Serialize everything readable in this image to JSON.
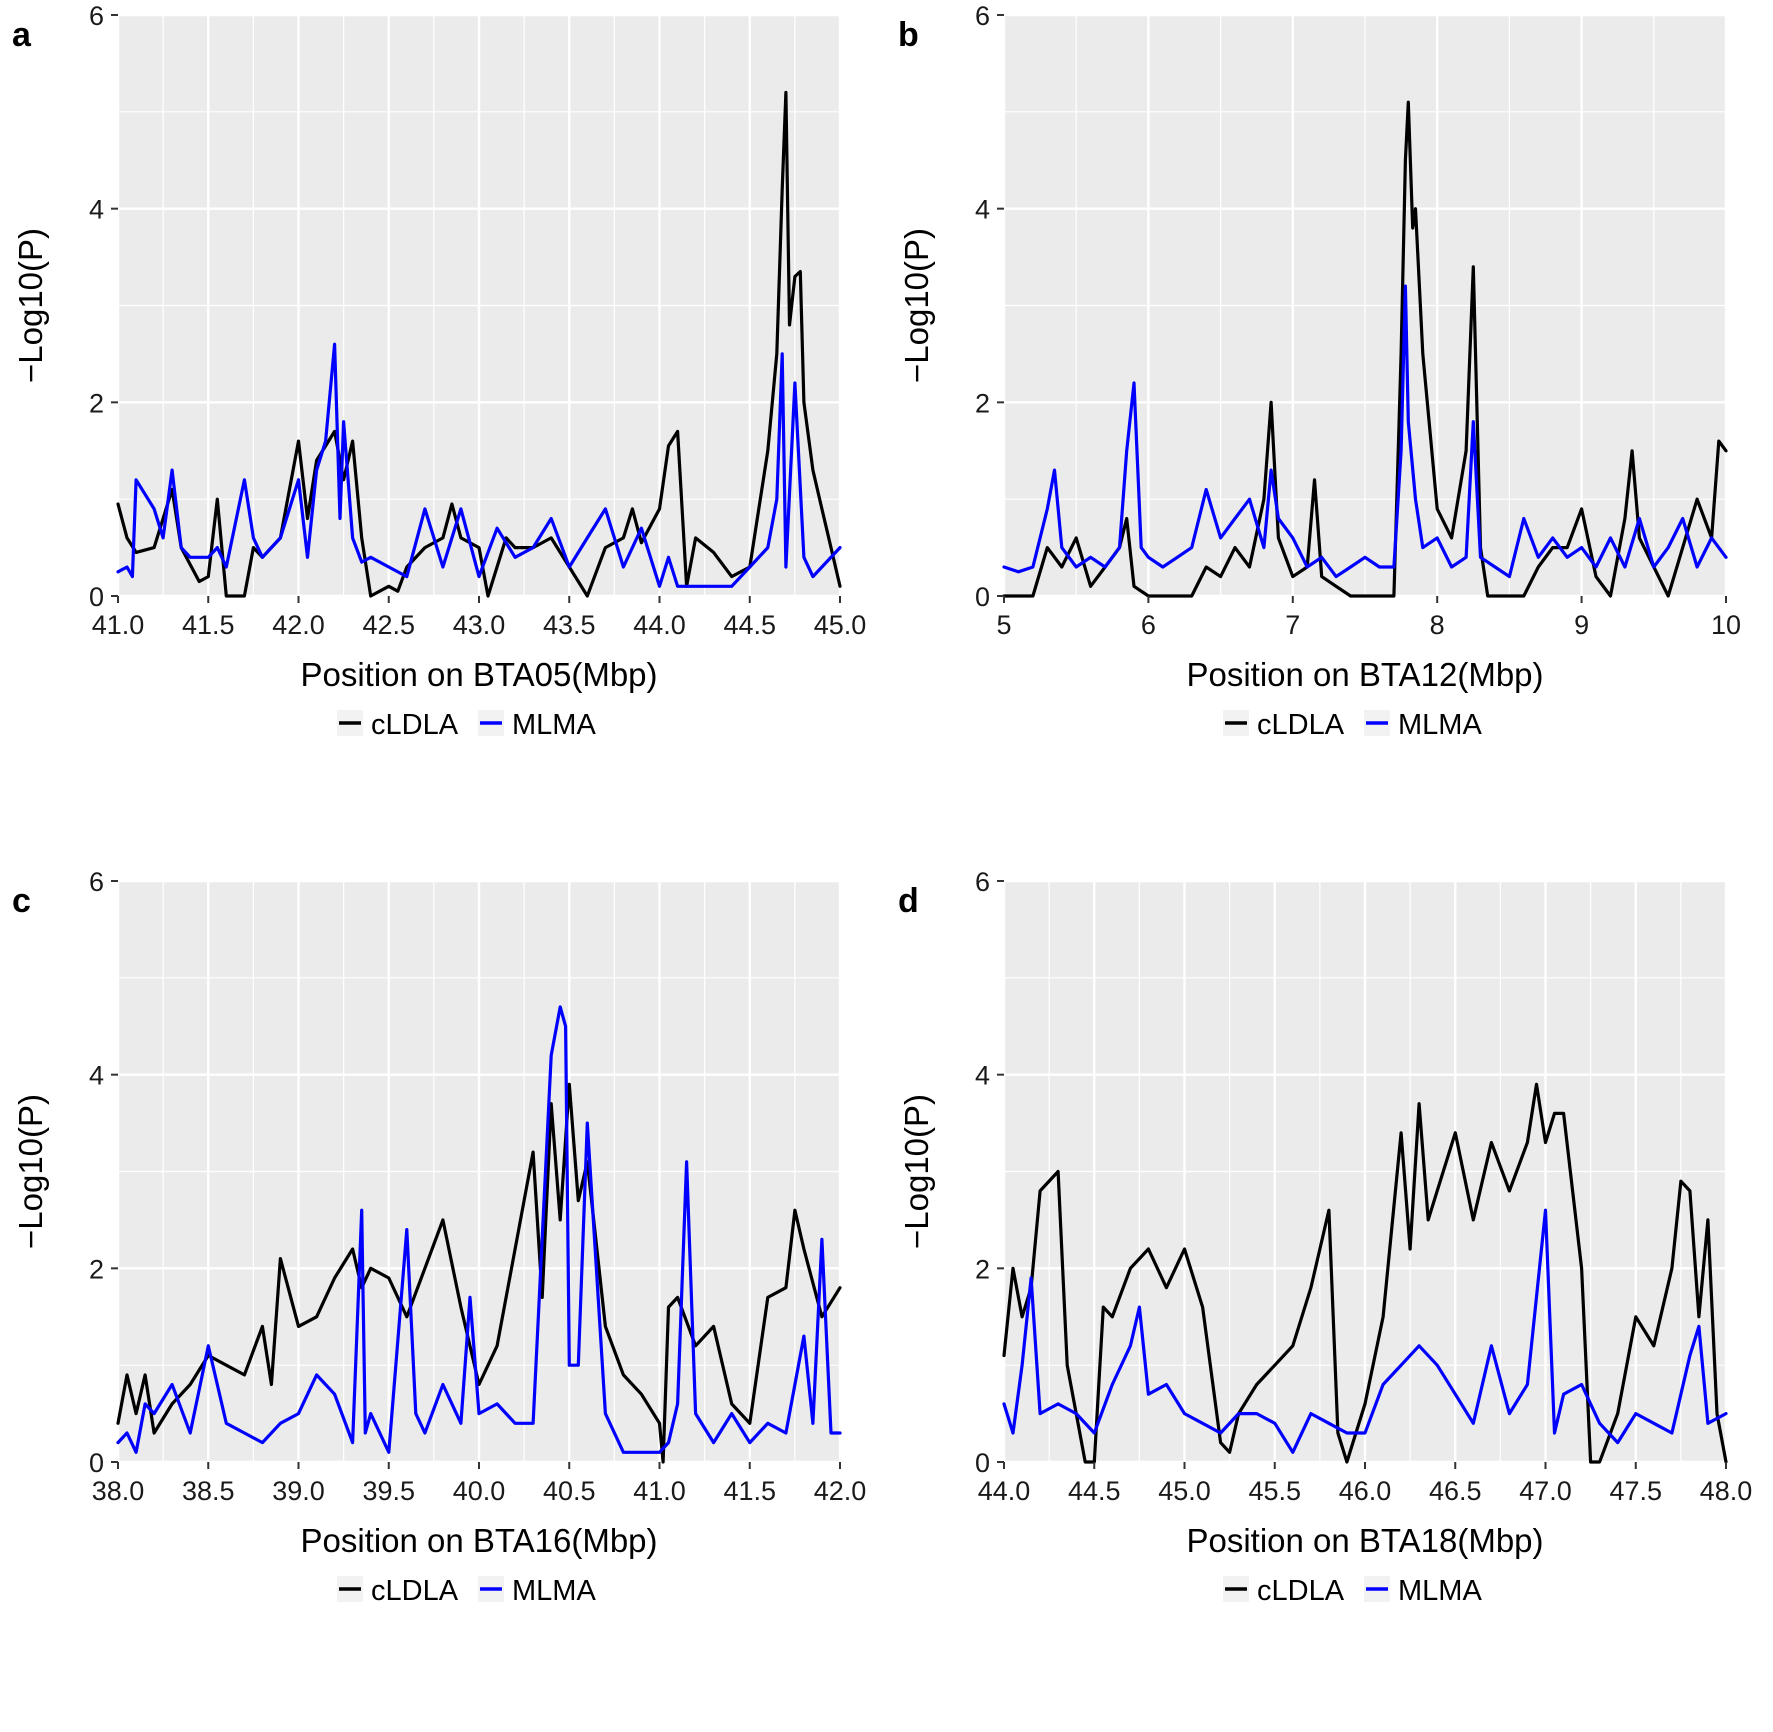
{
  "colors": {
    "panel_background": "#ebebeb",
    "gridline": "#ffffff",
    "cLDLA": "#000000",
    "MLMA": "#0000ff"
  },
  "legend": {
    "placement": "bottom",
    "entries": [
      "cLDLA",
      "MLMA"
    ]
  },
  "chart_data": [
    {
      "type": "line",
      "panel_label": "a",
      "xlabel": "Position on BTA05(Mbp)",
      "ylabel": "−Log10(P)",
      "xlim": [
        41.0,
        45.0
      ],
      "ylim": [
        0,
        6
      ],
      "x_ticks": [
        "41.0",
        "41.5",
        "42.0",
        "42.5",
        "43.0",
        "43.5",
        "44.0",
        "44.5",
        "45.0"
      ],
      "y_ticks": [
        "0",
        "2",
        "4",
        "6"
      ],
      "grid": true,
      "series": [
        {
          "name": "cLDLA",
          "x": [
            41.0,
            41.05,
            41.1,
            41.2,
            41.3,
            41.35,
            41.45,
            41.5,
            41.55,
            41.6,
            41.7,
            41.75,
            41.8,
            41.9,
            42.0,
            42.05,
            42.1,
            42.2,
            42.25,
            42.3,
            42.35,
            42.4,
            42.5,
            42.55,
            42.6,
            42.7,
            42.8,
            42.85,
            42.9,
            43.0,
            43.05,
            43.15,
            43.2,
            43.3,
            43.4,
            43.5,
            43.6,
            43.7,
            43.8,
            43.85,
            43.9,
            44.0,
            44.05,
            44.1,
            44.15,
            44.2,
            44.3,
            44.4,
            44.5,
            44.55,
            44.6,
            44.65,
            44.68,
            44.7,
            44.72,
            44.75,
            44.78,
            44.8,
            44.85,
            44.9,
            44.95,
            45.0
          ],
          "values": [
            0.95,
            0.6,
            0.45,
            0.5,
            1.1,
            0.5,
            0.15,
            0.2,
            1.0,
            0.0,
            0.0,
            0.5,
            0.4,
            0.6,
            1.6,
            0.8,
            1.4,
            1.7,
            1.2,
            1.6,
            0.6,
            0.0,
            0.1,
            0.05,
            0.3,
            0.5,
            0.6,
            0.95,
            0.6,
            0.5,
            0.0,
            0.6,
            0.5,
            0.5,
            0.6,
            0.3,
            0.0,
            0.5,
            0.6,
            0.9,
            0.55,
            0.9,
            1.55,
            1.7,
            0.1,
            0.6,
            0.45,
            0.2,
            0.3,
            0.9,
            1.5,
            2.5,
            4.2,
            5.2,
            2.8,
            3.3,
            3.35,
            2.0,
            1.3,
            0.9,
            0.5,
            0.1
          ]
        },
        {
          "name": "MLMA",
          "x": [
            41.0,
            41.05,
            41.08,
            41.1,
            41.2,
            41.25,
            41.3,
            41.35,
            41.4,
            41.5,
            41.55,
            41.6,
            41.7,
            41.75,
            41.8,
            41.9,
            42.0,
            42.05,
            42.1,
            42.15,
            42.2,
            42.23,
            42.25,
            42.3,
            42.35,
            42.4,
            42.5,
            42.6,
            42.7,
            42.8,
            42.9,
            43.0,
            43.1,
            43.2,
            43.3,
            43.4,
            43.5,
            43.6,
            43.7,
            43.8,
            43.9,
            44.0,
            44.05,
            44.1,
            44.2,
            44.3,
            44.4,
            44.5,
            44.6,
            44.65,
            44.68,
            44.7,
            44.75,
            44.8,
            44.85,
            44.9,
            45.0
          ],
          "values": [
            0.25,
            0.3,
            0.2,
            1.2,
            0.9,
            0.6,
            1.3,
            0.5,
            0.4,
            0.4,
            0.5,
            0.3,
            1.2,
            0.6,
            0.4,
            0.6,
            1.2,
            0.4,
            1.3,
            1.6,
            2.6,
            0.8,
            1.8,
            0.6,
            0.35,
            0.4,
            0.3,
            0.2,
            0.9,
            0.3,
            0.9,
            0.2,
            0.7,
            0.4,
            0.5,
            0.8,
            0.3,
            0.6,
            0.9,
            0.3,
            0.7,
            0.1,
            0.4,
            0.1,
            0.1,
            0.1,
            0.1,
            0.3,
            0.5,
            1.0,
            2.5,
            0.3,
            2.2,
            0.4,
            0.2,
            0.3,
            0.5
          ]
        }
      ]
    },
    {
      "type": "line",
      "panel_label": "b",
      "xlabel": "Position on BTA12(Mbp)",
      "ylabel": "−Log10(P)",
      "xlim": [
        5,
        10
      ],
      "ylim": [
        0,
        6
      ],
      "x_ticks": [
        "5",
        "6",
        "7",
        "8",
        "9",
        "10"
      ],
      "y_ticks": [
        "0",
        "2",
        "4",
        "6"
      ],
      "grid": true,
      "series": [
        {
          "name": "cLDLA",
          "x": [
            5.0,
            5.2,
            5.3,
            5.4,
            5.5,
            5.6,
            5.7,
            5.8,
            5.85,
            5.9,
            6.0,
            6.1,
            6.3,
            6.4,
            6.5,
            6.6,
            6.7,
            6.8,
            6.85,
            6.9,
            7.0,
            7.1,
            7.15,
            7.2,
            7.3,
            7.4,
            7.5,
            7.7,
            7.75,
            7.78,
            7.8,
            7.83,
            7.85,
            7.9,
            8.0,
            8.1,
            8.2,
            8.25,
            8.3,
            8.35,
            8.5,
            8.6,
            8.7,
            8.8,
            8.9,
            9.0,
            9.1,
            9.2,
            9.3,
            9.35,
            9.4,
            9.5,
            9.6,
            9.7,
            9.8,
            9.9,
            9.95,
            10.0
          ],
          "values": [
            0.0,
            0.0,
            0.5,
            0.3,
            0.6,
            0.1,
            0.3,
            0.5,
            0.8,
            0.1,
            0.0,
            0.0,
            0.0,
            0.3,
            0.2,
            0.5,
            0.3,
            1.0,
            2.0,
            0.6,
            0.2,
            0.3,
            1.2,
            0.2,
            0.1,
            0.0,
            0.0,
            0.0,
            2.5,
            4.5,
            5.1,
            3.8,
            4.0,
            2.5,
            0.9,
            0.6,
            1.5,
            3.4,
            0.5,
            0.0,
            0.0,
            0.0,
            0.3,
            0.5,
            0.5,
            0.9,
            0.2,
            0.0,
            0.8,
            1.5,
            0.6,
            0.3,
            0.0,
            0.5,
            1.0,
            0.6,
            1.6,
            1.5
          ]
        },
        {
          "name": "MLMA",
          "x": [
            5.0,
            5.1,
            5.2,
            5.3,
            5.35,
            5.4,
            5.5,
            5.6,
            5.7,
            5.8,
            5.85,
            5.9,
            5.95,
            6.0,
            6.1,
            6.2,
            6.3,
            6.4,
            6.5,
            6.6,
            6.7,
            6.8,
            6.85,
            6.9,
            7.0,
            7.1,
            7.2,
            7.3,
            7.4,
            7.5,
            7.6,
            7.7,
            7.75,
            7.78,
            7.8,
            7.85,
            7.9,
            8.0,
            8.1,
            8.2,
            8.25,
            8.3,
            8.4,
            8.5,
            8.6,
            8.7,
            8.8,
            8.9,
            9.0,
            9.1,
            9.2,
            9.3,
            9.4,
            9.5,
            9.6,
            9.7,
            9.8,
            9.9,
            10.0
          ],
          "values": [
            0.3,
            0.25,
            0.3,
            0.9,
            1.3,
            0.5,
            0.3,
            0.4,
            0.3,
            0.5,
            1.5,
            2.2,
            0.5,
            0.4,
            0.3,
            0.4,
            0.5,
            1.1,
            0.6,
            0.8,
            1.0,
            0.5,
            1.3,
            0.8,
            0.6,
            0.3,
            0.4,
            0.2,
            0.3,
            0.4,
            0.3,
            0.3,
            1.5,
            3.2,
            1.8,
            1.0,
            0.5,
            0.6,
            0.3,
            0.4,
            1.8,
            0.4,
            0.3,
            0.2,
            0.8,
            0.4,
            0.6,
            0.4,
            0.5,
            0.3,
            0.6,
            0.3,
            0.8,
            0.3,
            0.5,
            0.8,
            0.3,
            0.6,
            0.4
          ]
        }
      ]
    },
    {
      "type": "line",
      "panel_label": "c",
      "xlabel": "Position on BTA16(Mbp)",
      "ylabel": "−Log10(P)",
      "xlim": [
        38.0,
        42.0
      ],
      "ylim": [
        0,
        6
      ],
      "x_ticks": [
        "38.0",
        "38.5",
        "39.0",
        "39.5",
        "40.0",
        "40.5",
        "41.0",
        "41.5",
        "42.0"
      ],
      "y_ticks": [
        "0",
        "2",
        "4",
        "6"
      ],
      "grid": true,
      "series": [
        {
          "name": "cLDLA",
          "x": [
            38.0,
            38.05,
            38.1,
            38.15,
            38.2,
            38.3,
            38.4,
            38.5,
            38.6,
            38.7,
            38.8,
            38.85,
            38.9,
            39.0,
            39.1,
            39.2,
            39.3,
            39.35,
            39.4,
            39.5,
            39.6,
            39.7,
            39.8,
            39.9,
            40.0,
            40.1,
            40.2,
            40.3,
            40.35,
            40.4,
            40.45,
            40.5,
            40.55,
            40.6,
            40.7,
            40.8,
            40.9,
            41.0,
            41.02,
            41.05,
            41.1,
            41.2,
            41.3,
            41.4,
            41.5,
            41.6,
            41.7,
            41.75,
            41.8,
            41.9,
            42.0
          ],
          "values": [
            0.4,
            0.9,
            0.5,
            0.9,
            0.3,
            0.6,
            0.8,
            1.1,
            1.0,
            0.9,
            1.4,
            0.8,
            2.1,
            1.4,
            1.5,
            1.9,
            2.2,
            1.8,
            2.0,
            1.9,
            1.5,
            2.0,
            2.5,
            1.6,
            0.8,
            1.2,
            2.2,
            3.2,
            1.7,
            3.7,
            2.5,
            3.9,
            2.7,
            3.1,
            1.4,
            0.9,
            0.7,
            0.4,
            0.0,
            1.6,
            1.7,
            1.2,
            1.4,
            0.6,
            0.4,
            1.7,
            1.8,
            2.6,
            2.2,
            1.5,
            1.8
          ]
        },
        {
          "name": "MLMA",
          "x": [
            38.0,
            38.05,
            38.1,
            38.15,
            38.2,
            38.3,
            38.4,
            38.5,
            38.6,
            38.7,
            38.8,
            38.9,
            39.0,
            39.1,
            39.2,
            39.3,
            39.35,
            39.37,
            39.4,
            39.5,
            39.6,
            39.65,
            39.7,
            39.8,
            39.9,
            39.95,
            40.0,
            40.1,
            40.2,
            40.3,
            40.4,
            40.45,
            40.48,
            40.5,
            40.55,
            40.6,
            40.7,
            40.8,
            40.9,
            41.0,
            41.05,
            41.1,
            41.15,
            41.2,
            41.3,
            41.4,
            41.5,
            41.6,
            41.7,
            41.8,
            41.85,
            41.9,
            41.95,
            42.0
          ],
          "values": [
            0.2,
            0.3,
            0.1,
            0.6,
            0.5,
            0.8,
            0.3,
            1.2,
            0.4,
            0.3,
            0.2,
            0.4,
            0.5,
            0.9,
            0.7,
            0.2,
            2.6,
            0.3,
            0.5,
            0.1,
            2.4,
            0.5,
            0.3,
            0.8,
            0.4,
            1.7,
            0.5,
            0.6,
            0.4,
            0.4,
            4.2,
            4.7,
            4.5,
            1.0,
            1.0,
            3.5,
            0.5,
            0.1,
            0.1,
            0.1,
            0.2,
            0.6,
            3.1,
            0.5,
            0.2,
            0.5,
            0.2,
            0.4,
            0.3,
            1.3,
            0.4,
            2.3,
            0.3,
            0.3
          ]
        }
      ]
    },
    {
      "type": "line",
      "panel_label": "d",
      "xlabel": "Position on BTA18(Mbp)",
      "ylabel": "−Log10(P)",
      "xlim": [
        44.0,
        48.0
      ],
      "ylim": [
        0,
        6
      ],
      "x_ticks": [
        "44.0",
        "44.5",
        "45.0",
        "45.5",
        "46.0",
        "46.5",
        "47.0",
        "47.5",
        "48.0"
      ],
      "y_ticks": [
        "0",
        "2",
        "4",
        "6"
      ],
      "grid": true,
      "series": [
        {
          "name": "cLDLA",
          "x": [
            44.0,
            44.05,
            44.1,
            44.15,
            44.2,
            44.3,
            44.35,
            44.4,
            44.45,
            44.5,
            44.55,
            44.6,
            44.7,
            44.8,
            44.9,
            45.0,
            45.1,
            45.2,
            45.25,
            45.3,
            45.4,
            45.5,
            45.6,
            45.7,
            45.8,
            45.85,
            45.9,
            46.0,
            46.1,
            46.2,
            46.25,
            46.3,
            46.35,
            46.4,
            46.5,
            46.6,
            46.7,
            46.8,
            46.9,
            46.95,
            47.0,
            47.05,
            47.1,
            47.2,
            47.25,
            47.3,
            47.4,
            47.5,
            47.6,
            47.7,
            47.75,
            47.8,
            47.85,
            47.9,
            47.95,
            48.0
          ],
          "values": [
            1.1,
            2.0,
            1.5,
            1.8,
            2.8,
            3.0,
            1.0,
            0.5,
            0.0,
            0.0,
            1.6,
            1.5,
            2.0,
            2.2,
            1.8,
            2.2,
            1.6,
            0.2,
            0.1,
            0.5,
            0.8,
            1.0,
            1.2,
            1.8,
            2.6,
            0.3,
            0.0,
            0.6,
            1.5,
            3.4,
            2.2,
            3.7,
            2.5,
            2.8,
            3.4,
            2.5,
            3.3,
            2.8,
            3.3,
            3.9,
            3.3,
            3.6,
            3.6,
            2.0,
            0.0,
            0.0,
            0.5,
            1.5,
            1.2,
            2.0,
            2.9,
            2.8,
            1.5,
            2.5,
            0.5,
            0.0
          ]
        },
        {
          "name": "MLMA",
          "x": [
            44.0,
            44.05,
            44.1,
            44.15,
            44.2,
            44.3,
            44.4,
            44.5,
            44.6,
            44.7,
            44.75,
            44.8,
            44.9,
            45.0,
            45.1,
            45.2,
            45.3,
            45.4,
            45.5,
            45.6,
            45.7,
            45.8,
            45.9,
            46.0,
            46.1,
            46.2,
            46.3,
            46.4,
            46.5,
            46.6,
            46.7,
            46.8,
            46.9,
            47.0,
            47.05,
            47.1,
            47.2,
            47.3,
            47.4,
            47.5,
            47.6,
            47.7,
            47.8,
            47.85,
            47.9,
            48.0
          ],
          "values": [
            0.6,
            0.3,
            1.0,
            1.9,
            0.5,
            0.6,
            0.5,
            0.3,
            0.8,
            1.2,
            1.6,
            0.7,
            0.8,
            0.5,
            0.4,
            0.3,
            0.5,
            0.5,
            0.4,
            0.1,
            0.5,
            0.4,
            0.3,
            0.3,
            0.8,
            1.0,
            1.2,
            1.0,
            0.7,
            0.4,
            1.2,
            0.5,
            0.8,
            2.6,
            0.3,
            0.7,
            0.8,
            0.4,
            0.2,
            0.5,
            0.4,
            0.3,
            1.1,
            1.4,
            0.4,
            0.5
          ]
        }
      ]
    }
  ]
}
